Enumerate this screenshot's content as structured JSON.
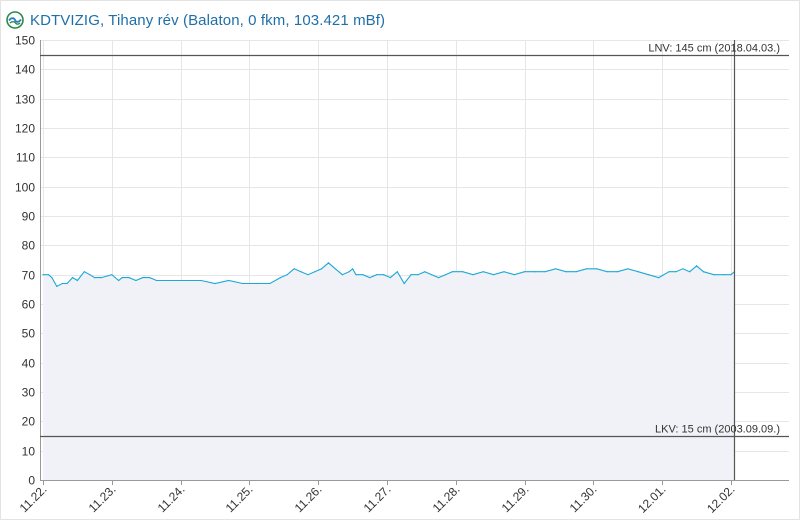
{
  "header": {
    "title": "KDTVIZIG, Tihany rév (Balaton, 0 fkm, 103.421 mBf)",
    "logo_icon": "kdtvizig-logo-icon"
  },
  "colors": {
    "series": "#1ca9d6",
    "area": "#f1f2f7",
    "reference": "#555555",
    "grid": "#e6e6e6",
    "title": "#1f6fa8"
  },
  "chart_data": {
    "type": "area",
    "title": "",
    "xlabel": "",
    "ylabel": "",
    "ylim": [
      0,
      150
    ],
    "yticks": [
      0,
      10,
      20,
      30,
      40,
      50,
      60,
      70,
      80,
      90,
      100,
      110,
      120,
      130,
      140,
      150
    ],
    "xlim": [
      "11.22.",
      "12.02. ~00:40"
    ],
    "xticks": [
      "11.22.",
      "11.23.",
      "11.24.",
      "11.25.",
      "11.26.",
      "11.27.",
      "11.28.",
      "11.29.",
      "11.30.",
      "12.01.",
      "12.02."
    ],
    "grid": true,
    "reference_lines": [
      {
        "name": "LNV",
        "value": 145,
        "label": "LNV: 145 cm (2018.04.03.)"
      },
      {
        "name": "LKV",
        "value": 15,
        "label": "LKV: 15 cm (2003.09.09.)"
      }
    ],
    "series": [
      {
        "unit": "cm",
        "x_days_from_1122": [
          0.0,
          0.08,
          0.13,
          0.2,
          0.28,
          0.35,
          0.43,
          0.5,
          0.6,
          0.68,
          0.75,
          0.85,
          1.0,
          1.1,
          1.15,
          1.25,
          1.35,
          1.45,
          1.55,
          1.65,
          1.8,
          1.95,
          2.1,
          2.3,
          2.5,
          2.7,
          2.9,
          3.1,
          3.3,
          3.45,
          3.55,
          3.65,
          3.75,
          3.85,
          3.95,
          4.05,
          4.15,
          4.25,
          4.35,
          4.45,
          4.5,
          4.55,
          4.65,
          4.75,
          4.85,
          4.95,
          5.05,
          5.15,
          5.25,
          5.35,
          5.45,
          5.55,
          5.65,
          5.75,
          5.85,
          5.95,
          6.1,
          6.25,
          6.4,
          6.55,
          6.7,
          6.85,
          7.0,
          7.15,
          7.3,
          7.45,
          7.6,
          7.75,
          7.9,
          8.05,
          8.2,
          8.35,
          8.5,
          8.65,
          8.8,
          8.95,
          9.1,
          9.2,
          9.3,
          9.4,
          9.5,
          9.6,
          9.75,
          9.9,
          10.0,
          10.05
        ],
        "values": [
          70,
          70,
          69,
          66,
          67,
          67,
          69,
          68,
          71,
          70,
          69,
          69,
          70,
          68,
          69,
          69,
          68,
          69,
          69,
          68,
          68,
          68,
          68,
          68,
          67,
          68,
          67,
          67,
          67,
          69,
          70,
          72,
          71,
          70,
          71,
          72,
          74,
          72,
          70,
          71,
          72,
          70,
          70,
          69,
          70,
          70,
          69,
          71,
          67,
          70,
          70,
          71,
          70,
          69,
          70,
          71,
          71,
          70,
          71,
          70,
          71,
          70,
          71,
          71,
          71,
          72,
          71,
          71,
          72,
          72,
          71,
          71,
          72,
          71,
          70,
          69,
          71,
          71,
          72,
          71,
          73,
          71,
          70,
          70,
          70,
          71
        ]
      }
    ]
  }
}
